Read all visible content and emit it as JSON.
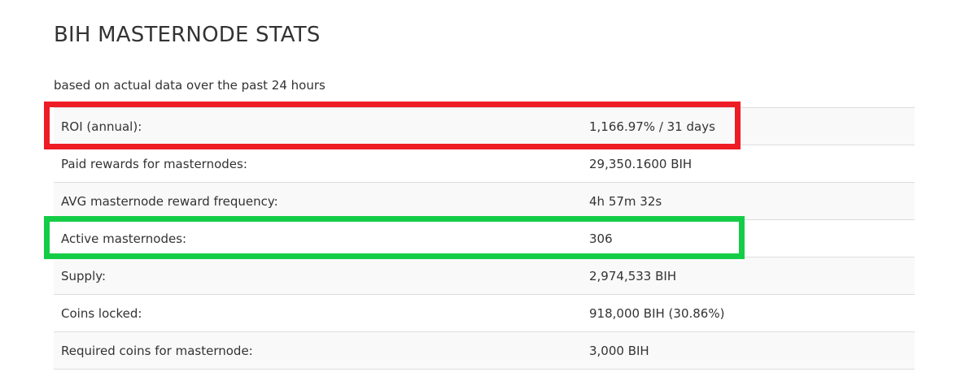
{
  "header": {
    "title": "BIH MASTERNODE STATS",
    "subtitle": "based on actual data over the past 24 hours"
  },
  "stats": [
    {
      "label": "ROI (annual):",
      "value": "1,166.97% / 31 days"
    },
    {
      "label": "Paid rewards for masternodes:",
      "value": "29,350.1600 BIH"
    },
    {
      "label": "AVG masternode reward frequency:",
      "value": "4h 57m 32s"
    },
    {
      "label": "Active masternodes:",
      "value": "306"
    },
    {
      "label": "Supply:",
      "value": "2,974,533 BIH"
    },
    {
      "label": "Coins locked:",
      "value": "918,000 BIH (30.86%)"
    },
    {
      "label": "Required coins for masternode:",
      "value": "3,000 BIH"
    }
  ],
  "annotations": {
    "red_box_color": "#ee1c25",
    "green_box_color": "#14cd46"
  }
}
